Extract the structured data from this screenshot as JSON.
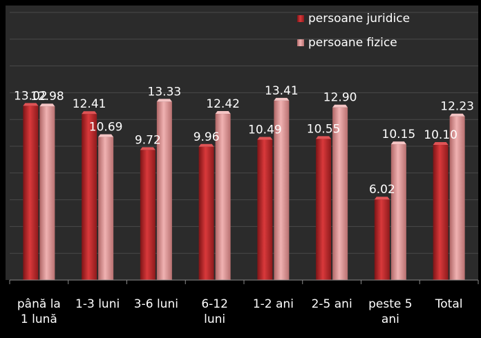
{
  "chart_data": {
    "type": "bar",
    "title": "",
    "xlabel": "",
    "ylabel": "",
    "categories": [
      [
        "până la",
        "1 lună"
      ],
      [
        "1-3 luni"
      ],
      [
        "3-6 luni"
      ],
      [
        "6-12",
        "luni"
      ],
      [
        "1-2 ani"
      ],
      [
        "2-5 ani"
      ],
      [
        "peste 5",
        "ani"
      ],
      [
        "Total"
      ]
    ],
    "series": [
      {
        "name": "persoane juridice",
        "values": [
          13.02,
          12.41,
          9.72,
          9.96,
          10.49,
          10.55,
          6.02,
          10.1
        ],
        "labels": [
          "13.02",
          "12.41",
          "9.72",
          "9.96",
          "10.49",
          "10.55",
          "6.02",
          "10.10"
        ],
        "color": "#c0282a"
      },
      {
        "name": "persoane fizice",
        "values": [
          12.98,
          10.69,
          13.33,
          12.42,
          13.41,
          12.9,
          10.15,
          12.23
        ],
        "labels": [
          "12.98",
          "10.69",
          "13.33",
          "12.42",
          "13.41",
          "12.90",
          "10.15",
          "12.23"
        ],
        "color": "#d98c8c"
      }
    ],
    "ylim": [
      0,
      20
    ],
    "grid": true,
    "legend_position": "top-right",
    "background_color": "#2b2b2b",
    "grid_color": "#4a4a4a",
    "text_color": "#ffffff"
  }
}
